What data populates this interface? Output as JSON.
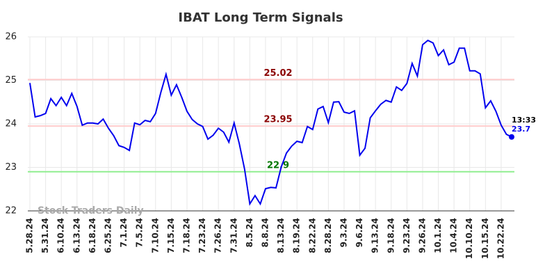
{
  "chart_data": {
    "type": "line",
    "title": "IBAT Long Term Signals",
    "watermark": "Stock Traders Daily",
    "time_label": "13:33",
    "categories": [
      "5.28.24",
      null,
      null,
      "5.31.24",
      null,
      null,
      "6.10.24",
      null,
      null,
      "6.13.24",
      null,
      null,
      "6.18.24",
      null,
      null,
      "6.25.24",
      null,
      null,
      "7.1.24",
      null,
      null,
      "7.5.24",
      null,
      null,
      "7.10.24",
      null,
      null,
      "7.15.24",
      null,
      null,
      "7.18.24",
      null,
      null,
      "7.23.24",
      null,
      null,
      "7.26.24",
      null,
      null,
      "7.31.24",
      null,
      null,
      "8.5.24",
      null,
      null,
      "8.8.24",
      null,
      null,
      "8.13.24",
      null,
      null,
      "8.19.24",
      null,
      null,
      "8.22.24",
      null,
      null,
      "8.28.24",
      null,
      null,
      "9.3.24",
      null,
      null,
      "9.6.24",
      null,
      null,
      "9.13.24",
      null,
      null,
      "9.18.24",
      null,
      null,
      "9.23.24",
      null,
      null,
      "9.26.24",
      null,
      null,
      "10.1.24",
      null,
      null,
      "10.4.24",
      null,
      null,
      "10.10.24",
      null,
      null,
      "10.15.24",
      null,
      null,
      "10.22.24",
      null,
      null
    ],
    "series": [
      {
        "color": "#0000ee",
        "values": [
          24.94,
          24.16,
          24.19,
          24.24,
          24.58,
          24.42,
          24.61,
          24.42,
          24.7,
          24.4,
          23.97,
          24.02,
          24.02,
          24.0,
          24.11,
          23.9,
          23.73,
          23.5,
          23.46,
          23.39,
          24.02,
          23.98,
          24.08,
          24.05,
          24.24,
          24.72,
          25.14,
          24.66,
          24.9,
          24.61,
          24.29,
          24.1,
          24.0,
          23.94,
          23.65,
          23.74,
          23.9,
          23.81,
          23.58,
          24.02,
          23.54,
          22.96,
          22.16,
          22.35,
          22.16,
          22.51,
          22.54,
          22.53,
          23.01,
          23.33,
          23.49,
          23.6,
          23.57,
          23.94,
          23.87,
          24.34,
          24.4,
          24.03,
          24.5,
          24.51,
          24.27,
          24.24,
          24.3,
          23.28,
          23.44,
          24.14,
          24.3,
          24.45,
          24.54,
          24.5,
          24.85,
          24.77,
          24.93,
          25.39,
          25.1,
          25.82,
          25.92,
          25.86,
          25.57,
          25.7,
          25.36,
          25.42,
          25.74,
          25.74,
          25.22,
          25.22,
          25.15,
          24.37,
          24.53,
          24.29,
          23.97,
          23.76,
          23.7
        ]
      }
    ],
    "hlines": [
      {
        "value": 25.02,
        "color": "#ffcccc",
        "label_color": "#8b0000"
      },
      {
        "value": 23.95,
        "color": "#ffcccc",
        "label_color": "#8b0000"
      },
      {
        "value": 22.9,
        "color": "#90ee90",
        "label_color": "#007700"
      }
    ],
    "ylim": [
      22,
      26
    ],
    "yticks": [
      22,
      23,
      24,
      25,
      26
    ],
    "grid": true
  }
}
